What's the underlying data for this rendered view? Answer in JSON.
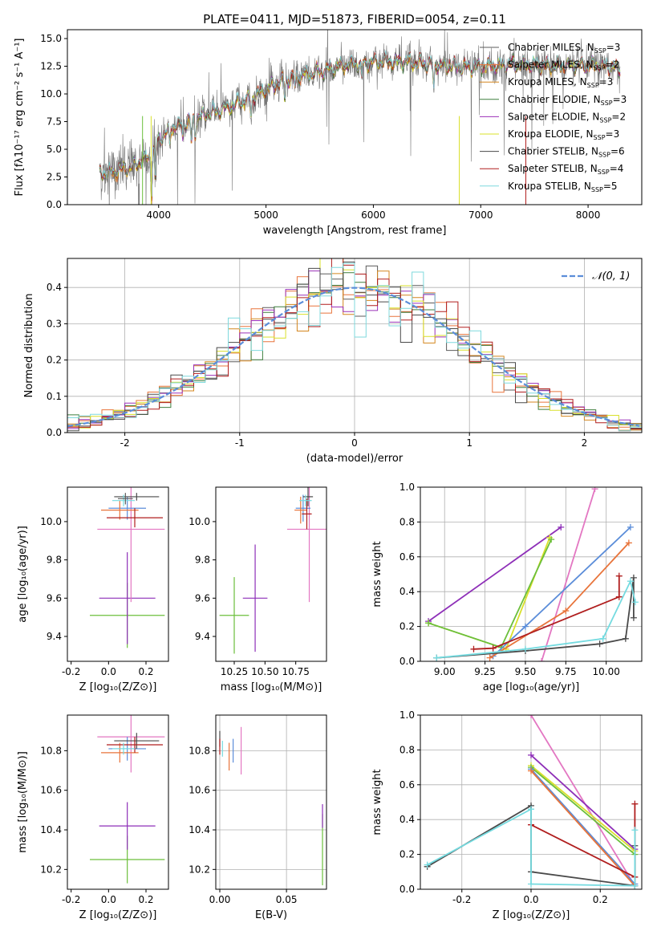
{
  "figure_title": "PLATE=0411, MJD=51873, FIBERID=0054, z=0.11",
  "colors": {
    "Chabrier MILES": "#5b5b5b",
    "Salpeter MILES": "#e8743b",
    "Kroupa MILES": "#d4861e",
    "Chabrier ELODIE": "#3f7f3f",
    "Salpeter ELODIE": "#9b30b8",
    "Kroupa ELODIE": "#d9e02a",
    "Chabrier STELIB": "#4a4a4a",
    "Salpeter STELIB": "#b01e1e",
    "Kroupa STELIB": "#7fd9dd",
    "pink": "#e377c2",
    "blue": "#5b8dd9",
    "green": "#6cbf3b",
    "purple": "#8e2fb8",
    "teal": "#75dbe0"
  },
  "chart_data": [
    {
      "id": "spectrum",
      "type": "line",
      "title": "PLATE=0411, MJD=51873, FIBERID=0054, z=0.11",
      "xlabel": "wavelength [Angstrom, rest frame]",
      "ylabel": "Flux [fλ10⁻¹⁷ erg cm⁻² s⁻¹ A⁻¹]",
      "xlim": [
        3150,
        8500
      ],
      "ylim": [
        0,
        15.8
      ],
      "xticks": [
        4000,
        5000,
        6000,
        7000,
        8000
      ],
      "yticks": [
        0.0,
        2.5,
        5.0,
        7.5,
        10.0,
        12.5,
        15.0
      ],
      "legend_position": "right",
      "legend": [
        {
          "label": "Chabrier MILES, N",
          "sub": "SSP",
          "val": "=3",
          "color": "#5b5b5b"
        },
        {
          "label": "Salpeter MILES, N",
          "sub": "SSP",
          "val": "=2",
          "color": "#e8743b"
        },
        {
          "label": "Kroupa MILES, N",
          "sub": "SSP",
          "val": "=3",
          "color": "#d4861e"
        },
        {
          "label": "Chabrier ELODIE, N",
          "sub": "SSP",
          "val": "=3",
          "color": "#3f7f3f"
        },
        {
          "label": "Salpeter ELODIE, N",
          "sub": "SSP",
          "val": "=2",
          "color": "#9b30b8"
        },
        {
          "label": "Kroupa ELODIE, N",
          "sub": "SSP",
          "val": "=3",
          "color": "#d9e02a"
        },
        {
          "label": "Chabrier STELIB, N",
          "sub": "SSP",
          "val": "=6",
          "color": "#4a4a4a"
        },
        {
          "label": "Salpeter STELIB, N",
          "sub": "SSP",
          "val": "=4",
          "color": "#b01e1e"
        },
        {
          "label": "Kroupa STELIB, N",
          "sub": "SSP",
          "val": "=5",
          "color": "#7fd9dd"
        }
      ],
      "continuum": [
        [
          3450,
          2.8
        ],
        [
          3600,
          3.0
        ],
        [
          3750,
          3.4
        ],
        [
          3900,
          4.2
        ],
        [
          4000,
          5.8
        ],
        [
          4100,
          6.8
        ],
        [
          4200,
          7.2
        ],
        [
          4300,
          7.6
        ],
        [
          4500,
          8.3
        ],
        [
          4700,
          9.0
        ],
        [
          4900,
          9.8
        ],
        [
          5100,
          11.0
        ],
        [
          5300,
          11.6
        ],
        [
          5500,
          12.0
        ],
        [
          5700,
          12.5
        ],
        [
          5900,
          12.8
        ],
        [
          6100,
          12.9
        ],
        [
          6300,
          12.9
        ],
        [
          6500,
          12.7
        ],
        [
          6700,
          12.5
        ],
        [
          6900,
          12.4
        ],
        [
          7100,
          12.5
        ],
        [
          7300,
          12.7
        ],
        [
          7500,
          12.6
        ],
        [
          7700,
          12.5
        ],
        [
          7900,
          12.6
        ],
        [
          8100,
          12.6
        ],
        [
          8300,
          12.3
        ]
      ],
      "observed_noise": 0.6
    },
    {
      "id": "residuals",
      "type": "histogram",
      "xlabel": "(data-model)/error",
      "ylabel": "Normed distribution",
      "xlim": [
        -2.5,
        2.5
      ],
      "ylim": [
        0,
        0.48
      ],
      "xticks": [
        -2,
        -1,
        0,
        1,
        2
      ],
      "yticks": [
        0.0,
        0.1,
        0.2,
        0.3,
        0.4
      ],
      "grid": true,
      "legend": "𝒩(0, 1)",
      "legend_position": "top-right",
      "bin_width": 0.1,
      "series_colors": [
        "#5b5b5b",
        "#e8743b",
        "#d4861e",
        "#3f7f3f",
        "#9b30b8",
        "#d9e02a",
        "#4a4a4a",
        "#b01e1e",
        "#7fd9dd"
      ]
    },
    {
      "id": "age-vs-Z",
      "type": "errorbar",
      "xlabel": "Z [log₁₀(Z/Z⊙)]",
      "ylabel": "age [log₁₀(age/yr)]",
      "xlim": [
        -0.22,
        0.32
      ],
      "ylim": [
        9.27,
        10.18
      ],
      "xticks": [
        -0.2,
        0.0,
        0.2
      ],
      "yticks": [
        9.4,
        9.6,
        9.8,
        10.0
      ],
      "points": [
        {
          "x": 0.1,
          "xerr": 0.2,
          "y": 9.51,
          "yerr": 0.17,
          "color": "#6cbf3b"
        },
        {
          "x": 0.1,
          "xerr": 0.15,
          "y": 9.6,
          "yerr": 0.24,
          "color": "#8e2fb8"
        },
        {
          "x": 0.12,
          "xerr": 0.18,
          "y": 9.96,
          "yerr": 0.38,
          "color": "#e377c2"
        },
        {
          "x": 0.1,
          "xerr": 0.1,
          "y": 10.07,
          "yerr": 0.06,
          "color": "#5b8dd9"
        },
        {
          "x": 0.06,
          "xerr": 0.1,
          "y": 10.06,
          "yerr": 0.05,
          "color": "#e8743b"
        },
        {
          "x": 0.15,
          "xerr": 0.12,
          "y": 10.13,
          "yerr": 0.02,
          "color": "#4a4a4a"
        },
        {
          "x": 0.14,
          "xerr": 0.15,
          "y": 10.02,
          "yerr": 0.05,
          "color": "#b01e1e"
        },
        {
          "x": 0.08,
          "xerr": 0.06,
          "y": 10.11,
          "yerr": 0.03,
          "color": "#75dbe0"
        },
        {
          "x": 0.09,
          "xerr": 0.04,
          "y": 10.12,
          "yerr": 0.03,
          "color": "#5b5b5b"
        }
      ]
    },
    {
      "id": "age-vs-mass",
      "type": "errorbar",
      "xlabel": "mass [log₁₀(M/M⊙)]",
      "ylabel": "",
      "xlim": [
        10.1,
        11.0
      ],
      "ylim": [
        9.27,
        10.18
      ],
      "xticks": [
        10.25,
        10.5,
        10.75
      ],
      "yticks": [
        9.4,
        9.6,
        9.8,
        10.0
      ],
      "points": [
        {
          "x": 10.25,
          "xerr": 0.12,
          "y": 9.51,
          "yerr": 0.2,
          "color": "#6cbf3b"
        },
        {
          "x": 10.42,
          "xerr": 0.1,
          "y": 9.6,
          "yerr": 0.28,
          "color": "#8e2fb8"
        },
        {
          "x": 10.86,
          "xerr": 0.18,
          "y": 9.96,
          "yerr": 0.38,
          "color": "#e377c2"
        },
        {
          "x": 10.81,
          "xerr": 0.06,
          "y": 10.07,
          "yerr": 0.07,
          "color": "#5b8dd9"
        },
        {
          "x": 10.79,
          "xerr": 0.05,
          "y": 10.06,
          "yerr": 0.07,
          "color": "#e8743b"
        },
        {
          "x": 10.85,
          "xerr": 0.04,
          "y": 10.13,
          "yerr": 0.05,
          "color": "#4a4a4a"
        },
        {
          "x": 10.84,
          "xerr": 0.04,
          "y": 10.04,
          "yerr": 0.08,
          "color": "#b01e1e"
        },
        {
          "x": 10.83,
          "xerr": 0.05,
          "y": 10.11,
          "yerr": 0.03,
          "color": "#75dbe0"
        }
      ]
    },
    {
      "id": "massweight-vs-age",
      "type": "line",
      "xlabel": "age [log₁₀(age/yr)]",
      "ylabel": "mass weight",
      "xlim": [
        8.85,
        10.22
      ],
      "ylim": [
        0,
        1.0
      ],
      "xticks": [
        9.0,
        9.25,
        9.5,
        9.75,
        10.0
      ],
      "yticks": [
        0.0,
        0.2,
        0.4,
        0.6,
        0.8,
        1.0
      ],
      "grid": true,
      "series": [
        {
          "color": "#e377c2",
          "points": [
            [
              9.6,
              0.0
            ],
            [
              9.93,
              0.99
            ]
          ]
        },
        {
          "color": "#8e2fb8",
          "points": [
            [
              8.9,
              0.23
            ],
            [
              9.72,
              0.77
            ]
          ]
        },
        {
          "color": "#d9e02a",
          "points": [
            [
              8.9,
              0.22
            ],
            [
              9.38,
              0.07
            ],
            [
              9.65,
              0.71
            ]
          ]
        },
        {
          "color": "#6cbf3b",
          "points": [
            [
              8.9,
              0.22
            ],
            [
              9.35,
              0.08
            ],
            [
              9.66,
              0.7
            ]
          ]
        },
        {
          "color": "#5b8dd9",
          "points": [
            [
              9.3,
              0.03
            ],
            [
              9.5,
              0.2
            ],
            [
              10.15,
              0.77
            ]
          ]
        },
        {
          "color": "#e8743b",
          "points": [
            [
              9.28,
              0.02
            ],
            [
              9.75,
              0.29
            ],
            [
              10.14,
              0.68
            ]
          ]
        },
        {
          "color": "#b01e1e",
          "points": [
            [
              9.18,
              0.07
            ],
            [
              9.3,
              0.075
            ],
            [
              10.08,
              0.37
            ],
            [
              10.08,
              0.49
            ]
          ]
        },
        {
          "color": "#4a4a4a",
          "points": [
            [
              8.95,
              0.02
            ],
            [
              9.5,
              0.06
            ],
            [
              9.96,
              0.1
            ],
            [
              10.12,
              0.13
            ],
            [
              10.17,
              0.48
            ],
            [
              10.17,
              0.25
            ]
          ]
        },
        {
          "color": "#75dbe0",
          "points": [
            [
              8.95,
              0.02
            ],
            [
              9.5,
              0.07
            ],
            [
              9.98,
              0.13
            ],
            [
              10.15,
              0.46
            ],
            [
              10.18,
              0.34
            ]
          ]
        }
      ]
    },
    {
      "id": "mass-vs-Z",
      "type": "errorbar",
      "xlabel": "Z [log₁₀(Z/Z⊙)]",
      "ylabel": "mass [log₁₀(M/M⊙)]",
      "xlim": [
        -0.22,
        0.32
      ],
      "ylim": [
        10.1,
        10.98
      ],
      "xticks": [
        -0.2,
        0.0,
        0.2
      ],
      "yticks": [
        10.2,
        10.4,
        10.6,
        10.8
      ],
      "points": [
        {
          "x": 0.1,
          "xerr": 0.2,
          "y": 10.25,
          "yerr": 0.12,
          "color": "#6cbf3b"
        },
        {
          "x": 0.1,
          "xerr": 0.15,
          "y": 10.42,
          "yerr": 0.12,
          "color": "#8e2fb8"
        },
        {
          "x": 0.12,
          "xerr": 0.18,
          "y": 10.87,
          "yerr": 0.18,
          "color": "#e377c2"
        },
        {
          "x": 0.1,
          "xerr": 0.1,
          "y": 10.81,
          "yerr": 0.06,
          "color": "#5b8dd9"
        },
        {
          "x": 0.06,
          "xerr": 0.1,
          "y": 10.79,
          "yerr": 0.05,
          "color": "#e8743b"
        },
        {
          "x": 0.15,
          "xerr": 0.12,
          "y": 10.85,
          "yerr": 0.04,
          "color": "#4a4a4a"
        },
        {
          "x": 0.14,
          "xerr": 0.15,
          "y": 10.83,
          "yerr": 0.04,
          "color": "#b01e1e"
        },
        {
          "x": 0.08,
          "xerr": 0.06,
          "y": 10.81,
          "yerr": 0.03,
          "color": "#75dbe0"
        }
      ]
    },
    {
      "id": "mass-vs-ebv",
      "type": "errorbar",
      "xlabel": "E(B-V)",
      "ylabel": "",
      "xlim": [
        -0.003,
        0.08
      ],
      "ylim": [
        10.1,
        10.98
      ],
      "xticks": [
        0.0,
        0.05
      ],
      "yticks": [
        10.2,
        10.4,
        10.6,
        10.8
      ],
      "grid": true,
      "points": [
        {
          "x": 0.077,
          "y": 10.3,
          "yerr": 0.18,
          "color": "#6cbf3b"
        },
        {
          "x": 0.077,
          "y": 10.47,
          "yerr": 0.06,
          "color": "#8e2fb8"
        },
        {
          "x": 0.016,
          "y": 10.8,
          "yerr": 0.12,
          "color": "#e377c2"
        },
        {
          "x": 0.01,
          "y": 10.8,
          "yerr": 0.06,
          "color": "#5b8dd9"
        },
        {
          "x": 0.007,
          "y": 10.77,
          "yerr": 0.07,
          "color": "#e8743b"
        },
        {
          "x": 0.0,
          "y": 10.86,
          "yerr": 0.04,
          "color": "#4a4a4a"
        },
        {
          "x": 0.0,
          "y": 10.82,
          "yerr": 0.04,
          "color": "#b01e1e"
        },
        {
          "x": 0.002,
          "y": 10.81,
          "yerr": 0.04,
          "color": "#75dbe0"
        }
      ]
    },
    {
      "id": "massweight-vs-Z",
      "type": "line",
      "xlabel": "Z [log₁₀(Z/Z⊙)]",
      "ylabel": "mass weight",
      "xlim": [
        -0.32,
        0.32
      ],
      "ylim": [
        0,
        1.0
      ],
      "xticks": [
        -0.2,
        0.0,
        0.2
      ],
      "yticks": [
        0.0,
        0.2,
        0.4,
        0.6,
        0.8,
        1.0
      ],
      "grid": true,
      "series": [
        {
          "color": "#e377c2",
          "points": [
            [
              0.0,
              1.0
            ],
            [
              0.3,
              0.02
            ]
          ]
        },
        {
          "color": "#8e2fb8",
          "points": [
            [
              0.0,
              0.77
            ],
            [
              0.3,
              0.23
            ]
          ]
        },
        {
          "color": "#d9e02a",
          "points": [
            [
              0.0,
              0.71
            ],
            [
              0.3,
              0.22
            ]
          ]
        },
        {
          "color": "#6cbf3b",
          "points": [
            [
              0.0,
              0.7
            ],
            [
              0.3,
              0.2
            ]
          ]
        },
        {
          "color": "#5b8dd9",
          "points": [
            [
              0.0,
              0.69
            ],
            [
              0.3,
              0.03
            ]
          ]
        },
        {
          "color": "#e8743b",
          "points": [
            [
              0.0,
              0.68
            ],
            [
              0.3,
              0.02
            ]
          ]
        },
        {
          "color": "#b01e1e",
          "points": [
            [
              0.0,
              0.37
            ],
            [
              0.3,
              0.07
            ],
            [
              0.3,
              0.49
            ]
          ]
        },
        {
          "color": "#4a4a4a",
          "points": [
            [
              -0.3,
              0.13
            ],
            [
              0.0,
              0.48
            ],
            [
              0.0,
              0.1
            ],
            [
              0.3,
              0.02
            ],
            [
              0.3,
              0.25
            ]
          ]
        },
        {
          "color": "#75dbe0",
          "points": [
            [
              -0.3,
              0.14
            ],
            [
              0.0,
              0.46
            ],
            [
              0.0,
              0.03
            ],
            [
              0.3,
              0.02
            ],
            [
              0.3,
              0.34
            ]
          ]
        }
      ]
    }
  ]
}
